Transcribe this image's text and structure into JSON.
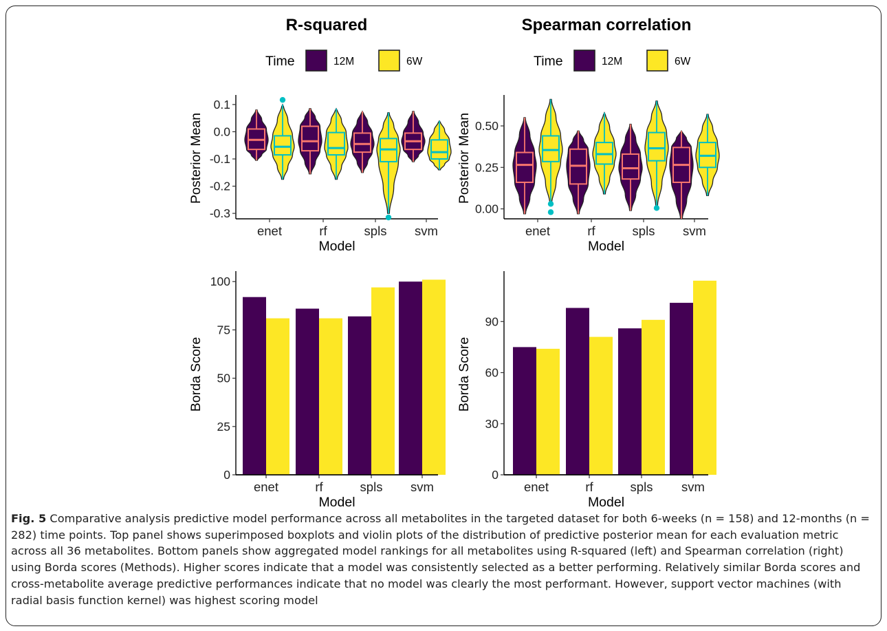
{
  "legend": {
    "title": "Time",
    "entries": [
      {
        "label": "12M",
        "fill": "#440154"
      },
      {
        "label": "6W",
        "fill": "#fde725"
      }
    ]
  },
  "colors": {
    "fill_12M": "#440154",
    "fill_6W": "#fde725",
    "box_12M": "#f8766d",
    "box_6W": "#00bfc4"
  },
  "chart_data": [
    {
      "id": "rsq_violin",
      "type": "violin+box",
      "title": "R-squared",
      "xlabel": "Model",
      "ylabel": "Posterior Mean",
      "categories": [
        "enet",
        "rf",
        "spls",
        "svm"
      ],
      "ylim": [
        -0.32,
        0.125
      ],
      "yticks": [
        0.1,
        0.0,
        -0.1,
        -0.2,
        -0.3
      ],
      "ytick_labels": [
        "0.1",
        "0.0",
        "-0.1",
        "-0.2",
        "-0.3"
      ],
      "series": [
        {
          "name": "12M",
          "groups": [
            {
              "min": -0.105,
              "q1": -0.065,
              "median": -0.03,
              "q3": 0.01,
              "max": 0.08,
              "outliers": []
            },
            {
              "min": -0.155,
              "q1": -0.07,
              "median": -0.035,
              "q3": 0.02,
              "max": 0.085,
              "outliers": []
            },
            {
              "min": -0.15,
              "q1": -0.075,
              "median": -0.045,
              "q3": -0.005,
              "max": 0.075,
              "outliers": []
            },
            {
              "min": -0.11,
              "q1": -0.065,
              "median": -0.035,
              "q3": -0.005,
              "max": 0.075,
              "outliers": []
            }
          ]
        },
        {
          "name": "6W",
          "groups": [
            {
              "min": -0.175,
              "q1": -0.085,
              "median": -0.055,
              "q3": -0.015,
              "max": 0.1,
              "outliers": [
                0.117
              ]
            },
            {
              "min": -0.175,
              "q1": -0.085,
              "median": -0.06,
              "q3": -0.003,
              "max": 0.085,
              "outliers": []
            },
            {
              "min": -0.3,
              "q1": -0.11,
              "median": -0.065,
              "q3": -0.025,
              "max": 0.07,
              "outliers": [
                -0.315
              ]
            },
            {
              "min": -0.14,
              "q1": -0.1,
              "median": -0.075,
              "q3": -0.03,
              "max": 0.04,
              "outliers": []
            }
          ]
        }
      ]
    },
    {
      "id": "spearman_violin",
      "type": "violin+box",
      "title": "Spearman correlation",
      "xlabel": "Model",
      "ylabel": "Posterior Mean",
      "categories": [
        "enet",
        "rf",
        "spls",
        "svm"
      ],
      "ylim": [
        -0.06,
        0.67
      ],
      "yticks": [
        0.0,
        0.25,
        0.5
      ],
      "ytick_labels": [
        "0.00",
        "0.25",
        "0.50"
      ],
      "series": [
        {
          "name": "12M",
          "groups": [
            {
              "min": -0.03,
              "q1": 0.16,
              "median": 0.265,
              "q3": 0.34,
              "max": 0.55,
              "outliers": []
            },
            {
              "min": -0.03,
              "q1": 0.15,
              "median": 0.26,
              "q3": 0.36,
              "max": 0.47,
              "outliers": []
            },
            {
              "min": -0.01,
              "q1": 0.18,
              "median": 0.245,
              "q3": 0.33,
              "max": 0.51,
              "outliers": []
            },
            {
              "min": -0.06,
              "q1": 0.16,
              "median": 0.265,
              "q3": 0.37,
              "max": 0.47,
              "outliers": []
            }
          ]
        },
        {
          "name": "6W",
          "groups": [
            {
              "min": 0.03,
              "q1": 0.285,
              "median": 0.355,
              "q3": 0.44,
              "max": 0.66,
              "outliers": [
                0.03,
                -0.02
              ]
            },
            {
              "min": 0.09,
              "q1": 0.27,
              "median": 0.33,
              "q3": 0.4,
              "max": 0.58,
              "outliers": []
            },
            {
              "min": 0.02,
              "q1": 0.29,
              "median": 0.365,
              "q3": 0.46,
              "max": 0.65,
              "outliers": [
                0.005
              ]
            },
            {
              "min": 0.08,
              "q1": 0.25,
              "median": 0.32,
              "q3": 0.4,
              "max": 0.57,
              "outliers": []
            }
          ]
        }
      ]
    },
    {
      "id": "rsq_borda",
      "type": "bar",
      "xlabel": "Model",
      "ylabel": "Borda Score",
      "categories": [
        "enet",
        "rf",
        "spls",
        "svm"
      ],
      "ylim": [
        0,
        104
      ],
      "yticks": [
        0,
        25,
        50,
        75,
        100
      ],
      "ytick_labels": [
        "0",
        "25",
        "50",
        "75",
        "100"
      ],
      "series": [
        {
          "name": "12M",
          "values": [
            92,
            86,
            82,
            100
          ]
        },
        {
          "name": "6W",
          "values": [
            81,
            81,
            97,
            101
          ]
        }
      ]
    },
    {
      "id": "spearman_borda",
      "type": "bar",
      "xlabel": "Model",
      "ylabel": "Borda Score",
      "categories": [
        "enet",
        "rf",
        "spls",
        "svm"
      ],
      "ylim": [
        0,
        118
      ],
      "yticks": [
        0,
        30,
        60,
        90
      ],
      "ytick_labels": [
        "0",
        "30",
        "60",
        "90"
      ],
      "series": [
        {
          "name": "12M",
          "values": [
            75,
            98,
            86,
            101
          ]
        },
        {
          "name": "6W",
          "values": [
            74,
            81,
            91,
            114
          ]
        }
      ]
    }
  ],
  "caption": {
    "label": "Fig. 5",
    "text": "Comparative analysis predictive model performance across all metabolites in the targeted dataset for both 6-weeks (n = 158) and 12-months (n = 282) time points. Top panel shows superimposed boxplots and violin plots of the distribution of predictive posterior mean for each evaluation metric across all 36 metabolites. Bottom panels show aggregated model rankings for all metabolites using R-squared (left) and Spearman correlation (right) using Borda scores (Methods). Higher scores indicate that a model was consistently selected as a better performing. Relatively similar Borda scores and cross-metabolite average predictive performances indicate that no model was clearly the most performant. However, support vector machines (with radial basis function kernel) was highest scoring model"
  }
}
